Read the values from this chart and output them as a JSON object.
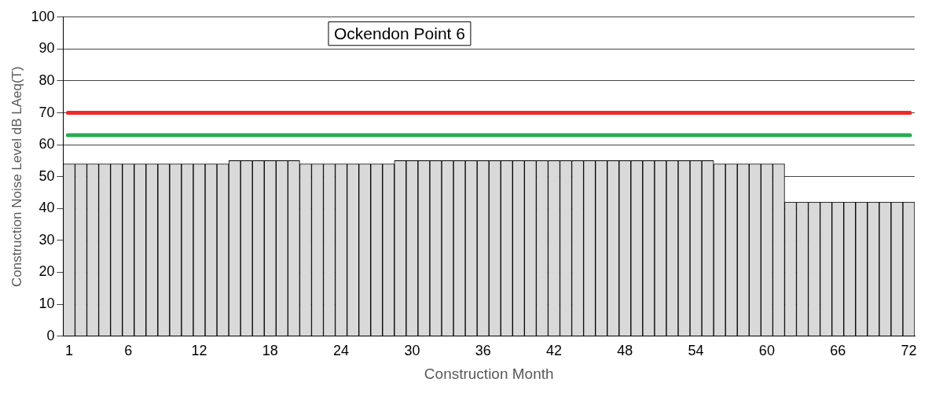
{
  "chart_data": {
    "type": "bar",
    "title": "Ockendon Point 6",
    "xlabel": "Construction Month",
    "ylabel": "Construction Noise Level dB LAeq(T)",
    "categories": [
      "1",
      null,
      null,
      null,
      null,
      "6",
      null,
      null,
      null,
      null,
      null,
      "12",
      null,
      null,
      null,
      null,
      null,
      "18",
      null,
      null,
      null,
      null,
      null,
      "24",
      null,
      null,
      null,
      null,
      null,
      "30",
      null,
      null,
      null,
      null,
      null,
      "36",
      null,
      null,
      null,
      null,
      null,
      "42",
      null,
      null,
      null,
      null,
      null,
      "48",
      null,
      null,
      null,
      null,
      null,
      "54",
      null,
      null,
      null,
      null,
      null,
      "60",
      null,
      null,
      null,
      null,
      null,
      "66",
      null,
      null,
      null,
      null,
      null,
      "72"
    ],
    "values": [
      54,
      54,
      54,
      54,
      54,
      54,
      54,
      54,
      54,
      54,
      54,
      54,
      54,
      54,
      55,
      55,
      55,
      55,
      55,
      55,
      54,
      54,
      54,
      54,
      54,
      54,
      54,
      54,
      55,
      55,
      55,
      55,
      55,
      55,
      55,
      55,
      55,
      55,
      55,
      55,
      55,
      55,
      55,
      55,
      55,
      55,
      55,
      55,
      55,
      55,
      55,
      55,
      55,
      55,
      55,
      54,
      54,
      54,
      54,
      54,
      54,
      42,
      42,
      42,
      42,
      42,
      42,
      42,
      42,
      42,
      42,
      42
    ],
    "color": "#d9d9d9",
    "ylim": [
      0,
      100
    ],
    "yticks": [
      0,
      10,
      20,
      30,
      40,
      50,
      60,
      70,
      80,
      90,
      100
    ],
    "grid": "y",
    "legend": false,
    "ref_lines": [
      {
        "axis": "y",
        "value": 70,
        "color": "#ee2a2a"
      },
      {
        "axis": "y",
        "value": 63,
        "color": "#2aaa55"
      }
    ]
  }
}
